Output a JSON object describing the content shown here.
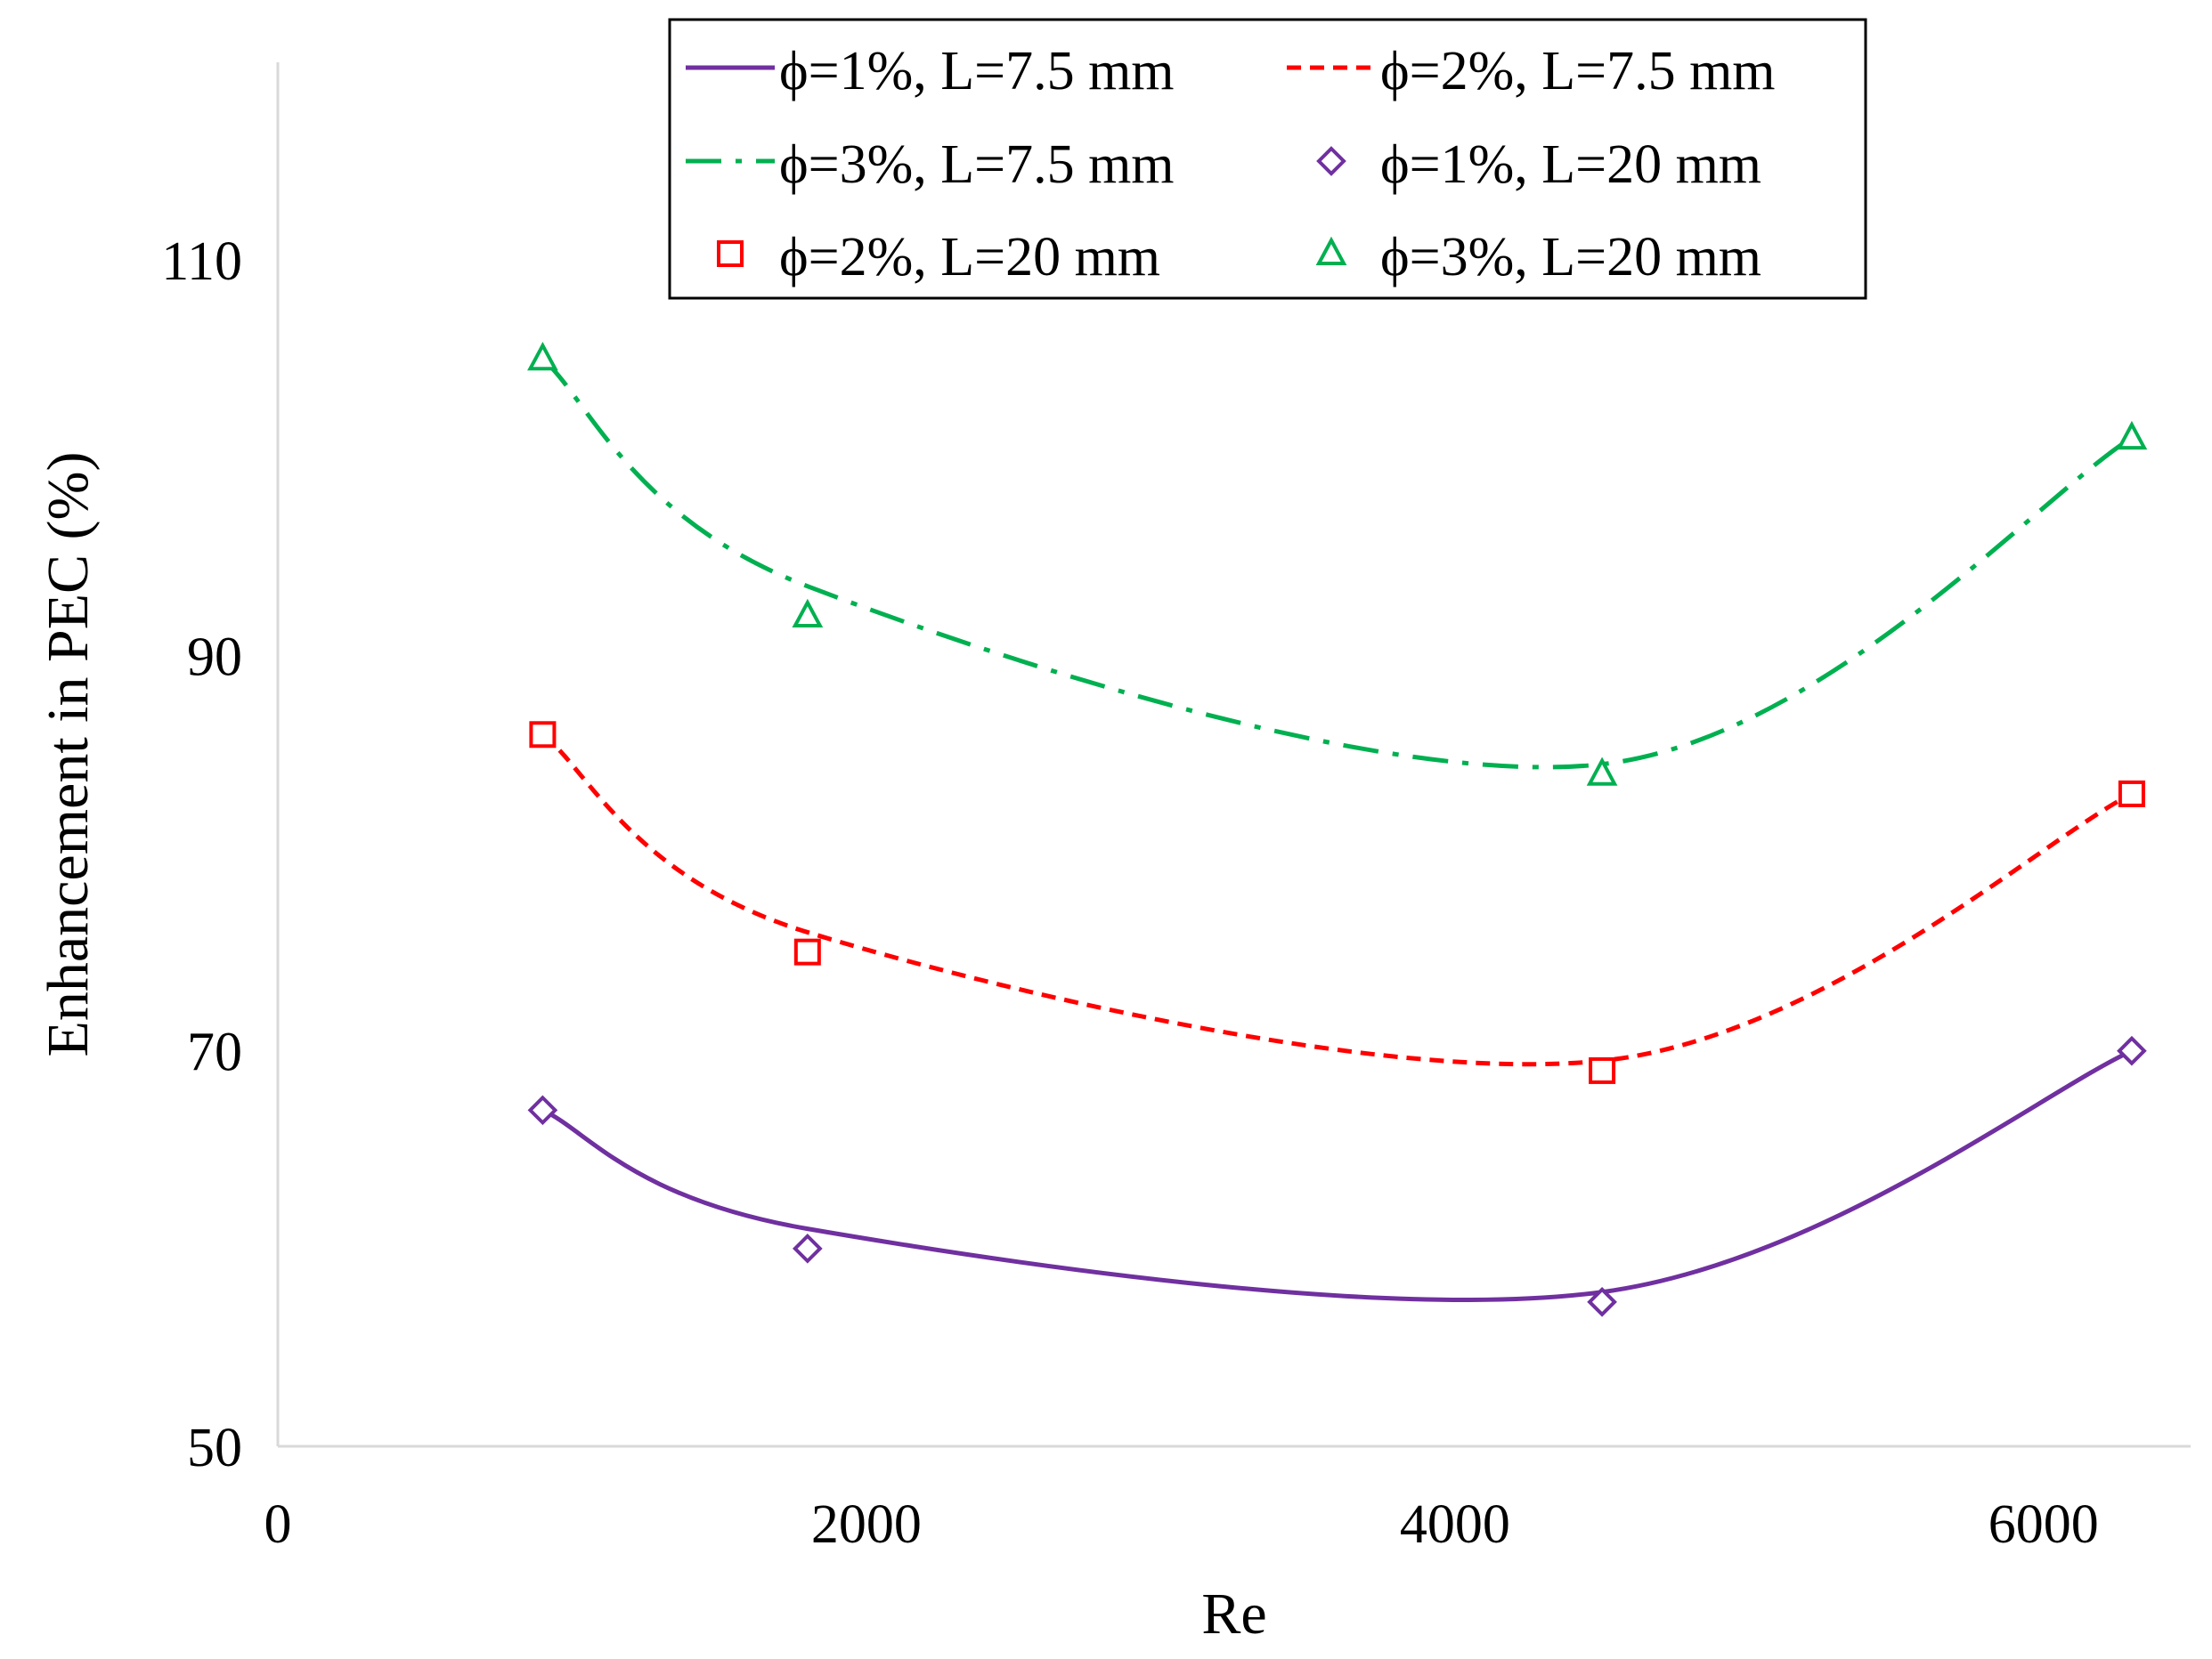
{
  "chart_data": {
    "type": "line",
    "title": "",
    "xlabel": "Re",
    "ylabel": "Enhancement in PEC (%)",
    "xlim": [
      0,
      6500
    ],
    "ylim": [
      50,
      120
    ],
    "xticks": [
      0,
      2000,
      4000,
      6000
    ],
    "yticks": [
      50,
      70,
      90,
      110
    ],
    "grid": false,
    "legend_position": "top-right",
    "x": [
      900,
      1800,
      4500,
      6300
    ],
    "series": [
      {
        "name": "ϕ=1%, L=7.5 mm",
        "kind": "line",
        "style": "solid",
        "color": "#7030a0",
        "values": [
          67,
          61,
          57.8,
          70
        ]
      },
      {
        "name": "ϕ=2%, L=7.5 mm",
        "kind": "line",
        "style": "dashed",
        "color": "#ff0000",
        "values": [
          86,
          76,
          69.5,
          83
        ]
      },
      {
        "name": "ϕ=3%, L=7.5 mm",
        "kind": "line",
        "style": "dashdot",
        "color": "#00b050",
        "values": [
          105,
          93.5,
          84.5,
          101
        ]
      },
      {
        "name": "ϕ=1%, L=20 mm",
        "kind": "marker",
        "marker": "diamond",
        "color": "#7030a0",
        "values": [
          67,
          60,
          57.3,
          70
        ]
      },
      {
        "name": "ϕ=2%, L=20 mm",
        "kind": "marker",
        "marker": "square",
        "color": "#ff0000",
        "values": [
          86,
          75,
          69,
          83
        ]
      },
      {
        "name": "ϕ=3%, L=20 mm",
        "kind": "marker",
        "marker": "triangle",
        "color": "#00b050",
        "values": [
          105,
          92,
          84,
          101
        ]
      }
    ]
  }
}
